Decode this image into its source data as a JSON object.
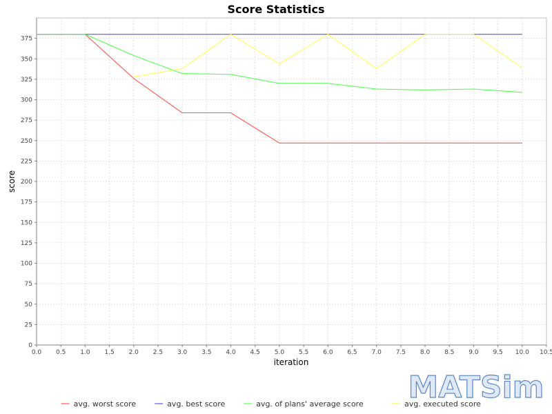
{
  "chart_data": {
    "type": "line",
    "title": "Score Statistics",
    "xlabel": "iteration",
    "ylabel": "score",
    "xlim": [
      0,
      10.5
    ],
    "ylim": [
      0,
      400
    ],
    "x_ticks": [
      "0.0",
      "0.5",
      "1.0",
      "1.5",
      "2.0",
      "2.5",
      "3.0",
      "3.5",
      "4.0",
      "4.5",
      "5.0",
      "5.5",
      "6.0",
      "6.5",
      "7.0",
      "7.5",
      "8.0",
      "8.5",
      "9.0",
      "9.5",
      "10.0",
      "10.5"
    ],
    "y_ticks": [
      "0",
      "25",
      "50",
      "75",
      "100",
      "125",
      "150",
      "175",
      "200",
      "225",
      "250",
      "275",
      "300",
      "325",
      "350",
      "375"
    ],
    "grid": true,
    "legend_position": "bottom",
    "series": [
      {
        "name": "avg. worst score",
        "color": "#ff5555",
        "x": [
          0,
          1,
          2,
          3,
          4,
          5,
          6,
          7,
          8,
          9,
          10
        ],
        "y": [
          380,
          380,
          326,
          284,
          284,
          247,
          247,
          247,
          247,
          247,
          247
        ]
      },
      {
        "name": "avg. best score",
        "color": "#5555ff",
        "x": [
          0,
          1,
          2,
          3,
          4,
          5,
          6,
          7,
          8,
          9,
          10
        ],
        "y": [
          380,
          380,
          380,
          380,
          380,
          380,
          380,
          380,
          380,
          380,
          380
        ]
      },
      {
        "name": "avg. of plans' average score",
        "color": "#55ff55",
        "x": [
          0,
          1,
          2,
          3,
          4,
          5,
          6,
          7,
          8,
          9,
          10
        ],
        "y": [
          380,
          380,
          354,
          332,
          331,
          320,
          320,
          313,
          312,
          313,
          309
        ]
      },
      {
        "name": "avg. executed score",
        "color": "#ffff55",
        "x": [
          2,
          3,
          4,
          5,
          6,
          7,
          8,
          9,
          10
        ],
        "y": [
          328,
          338,
          380,
          344,
          380,
          338,
          380,
          380,
          339
        ]
      }
    ]
  },
  "logo": {
    "text": "MATSim"
  }
}
